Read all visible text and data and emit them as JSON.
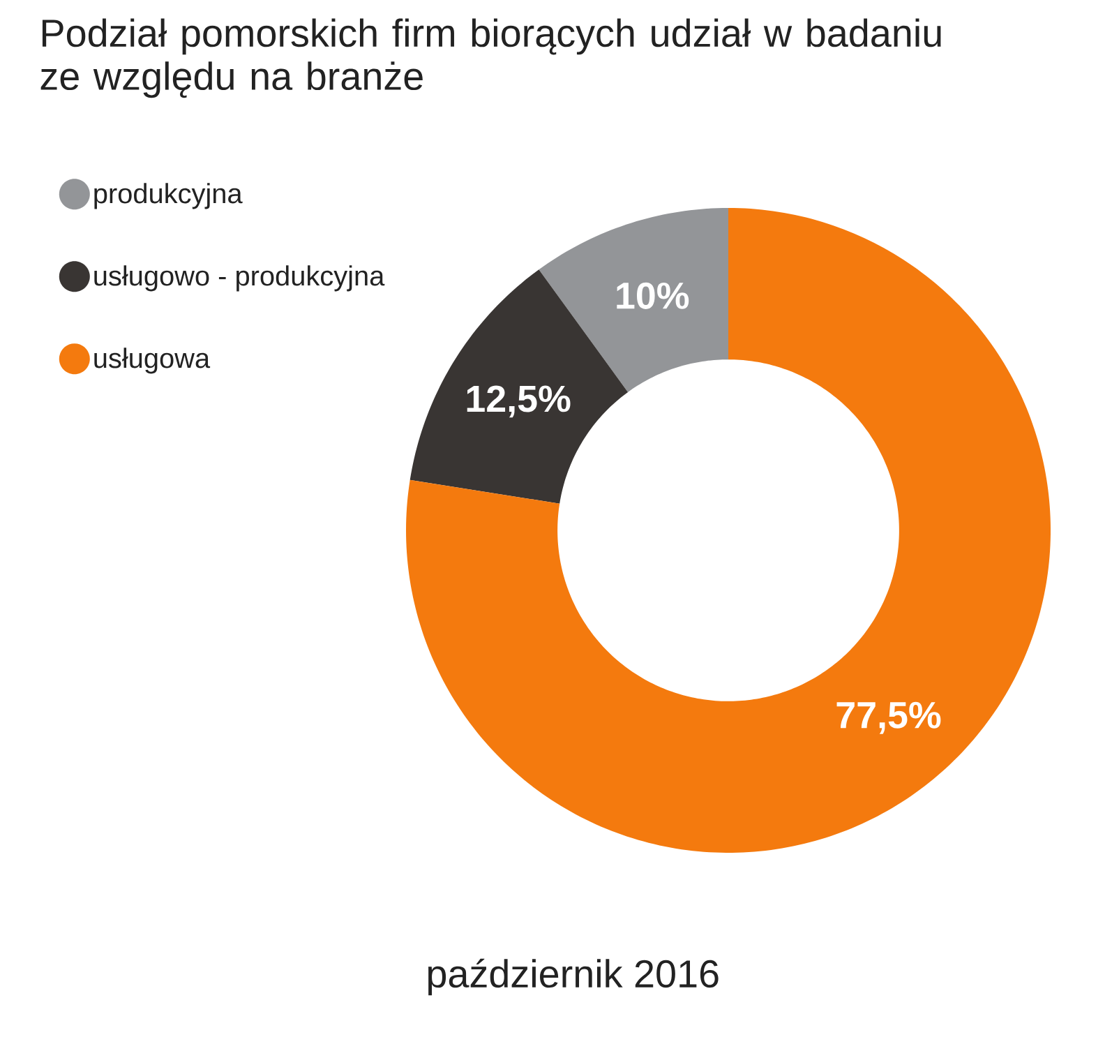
{
  "chart_data": {
    "type": "donut",
    "title": "Podział pomorskich firm biorących udział w badaniu ze względu na branże",
    "categories": [
      "produkcyjna",
      "usługowo - produkcyjna",
      "usługowa"
    ],
    "values": [
      10,
      12.5,
      77.5
    ],
    "colors": [
      "#939598",
      "#393533",
      "#f47a0e"
    ],
    "value_labels": [
      "10%",
      "12,5%",
      "77,5%"
    ],
    "legend": "top left",
    "annotations": [
      "październik 2016"
    ]
  }
}
